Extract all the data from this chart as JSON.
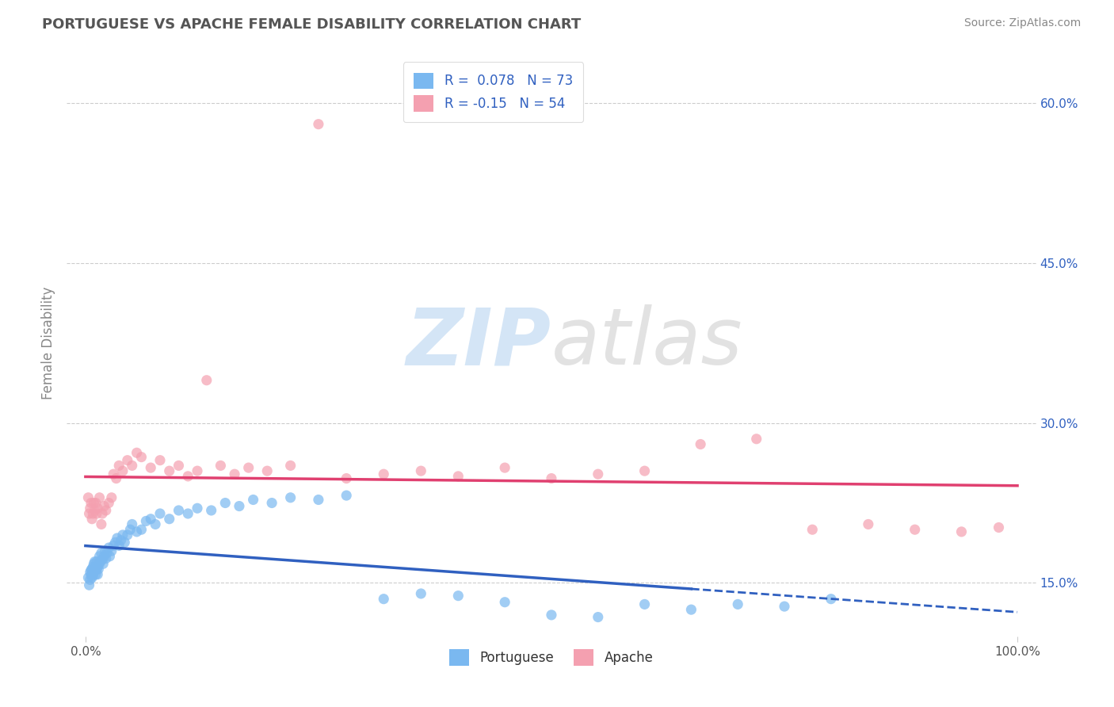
{
  "title": "PORTUGUESE VS APACHE FEMALE DISABILITY CORRELATION CHART",
  "source": "Source: ZipAtlas.com",
  "ylabel": "Female Disability",
  "xlim": [
    -0.02,
    1.02
  ],
  "ylim": [
    0.1,
    0.65
  ],
  "x_ticks": [
    0.0,
    1.0
  ],
  "x_tick_labels": [
    "0.0%",
    "100.0%"
  ],
  "y_ticks_right": [
    0.15,
    0.3,
    0.45,
    0.6
  ],
  "y_tick_labels_right": [
    "15.0%",
    "30.0%",
    "45.0%",
    "60.0%"
  ],
  "portuguese_R": 0.078,
  "portuguese_N": 73,
  "apache_R": -0.15,
  "apache_N": 54,
  "portuguese_color": "#7ab8f0",
  "apache_color": "#f4a0b0",
  "portuguese_line_color": "#3060c0",
  "apache_line_color": "#e04070",
  "legend_portuguese": "Portuguese",
  "legend_apache": "Apache",
  "background_color": "#ffffff",
  "grid_color": "#cccccc",
  "portuguese_x": [
    0.003,
    0.004,
    0.005,
    0.005,
    0.006,
    0.006,
    0.007,
    0.007,
    0.008,
    0.008,
    0.009,
    0.009,
    0.01,
    0.01,
    0.011,
    0.011,
    0.012,
    0.012,
    0.013,
    0.013,
    0.014,
    0.015,
    0.015,
    0.016,
    0.017,
    0.018,
    0.019,
    0.02,
    0.021,
    0.022,
    0.023,
    0.025,
    0.026,
    0.028,
    0.03,
    0.032,
    0.034,
    0.036,
    0.038,
    0.04,
    0.042,
    0.045,
    0.048,
    0.05,
    0.055,
    0.06,
    0.065,
    0.07,
    0.075,
    0.08,
    0.09,
    0.1,
    0.11,
    0.12,
    0.135,
    0.15,
    0.165,
    0.18,
    0.2,
    0.22,
    0.25,
    0.28,
    0.32,
    0.36,
    0.4,
    0.45,
    0.5,
    0.55,
    0.6,
    0.65,
    0.7,
    0.75,
    0.8
  ],
  "portuguese_y": [
    0.155,
    0.148,
    0.153,
    0.16,
    0.158,
    0.162,
    0.155,
    0.163,
    0.157,
    0.165,
    0.16,
    0.168,
    0.162,
    0.17,
    0.158,
    0.165,
    0.163,
    0.17,
    0.158,
    0.165,
    0.163,
    0.168,
    0.175,
    0.17,
    0.178,
    0.172,
    0.168,
    0.175,
    0.18,
    0.173,
    0.178,
    0.183,
    0.175,
    0.18,
    0.185,
    0.188,
    0.192,
    0.185,
    0.19,
    0.195,
    0.188,
    0.195,
    0.2,
    0.205,
    0.198,
    0.2,
    0.208,
    0.21,
    0.205,
    0.215,
    0.21,
    0.218,
    0.215,
    0.22,
    0.218,
    0.225,
    0.222,
    0.228,
    0.225,
    0.23,
    0.228,
    0.232,
    0.135,
    0.14,
    0.138,
    0.132,
    0.12,
    0.118,
    0.13,
    0.125,
    0.13,
    0.128,
    0.135
  ],
  "apache_x": [
    0.003,
    0.004,
    0.005,
    0.006,
    0.007,
    0.008,
    0.009,
    0.01,
    0.011,
    0.012,
    0.013,
    0.015,
    0.017,
    0.018,
    0.02,
    0.022,
    0.025,
    0.028,
    0.03,
    0.033,
    0.036,
    0.04,
    0.045,
    0.05,
    0.055,
    0.06,
    0.07,
    0.08,
    0.09,
    0.1,
    0.11,
    0.12,
    0.13,
    0.145,
    0.16,
    0.175,
    0.195,
    0.22,
    0.25,
    0.28,
    0.32,
    0.36,
    0.4,
    0.45,
    0.5,
    0.55,
    0.6,
    0.66,
    0.72,
    0.78,
    0.84,
    0.89,
    0.94,
    0.98
  ],
  "apache_y": [
    0.23,
    0.215,
    0.22,
    0.225,
    0.21,
    0.215,
    0.225,
    0.218,
    0.225,
    0.215,
    0.22,
    0.23,
    0.205,
    0.215,
    0.222,
    0.218,
    0.225,
    0.23,
    0.252,
    0.248,
    0.26,
    0.255,
    0.265,
    0.26,
    0.272,
    0.268,
    0.258,
    0.265,
    0.255,
    0.26,
    0.25,
    0.255,
    0.34,
    0.26,
    0.252,
    0.258,
    0.255,
    0.26,
    0.58,
    0.248,
    0.252,
    0.255,
    0.25,
    0.258,
    0.248,
    0.252,
    0.255,
    0.28,
    0.285,
    0.2,
    0.205,
    0.2,
    0.198,
    0.202
  ]
}
